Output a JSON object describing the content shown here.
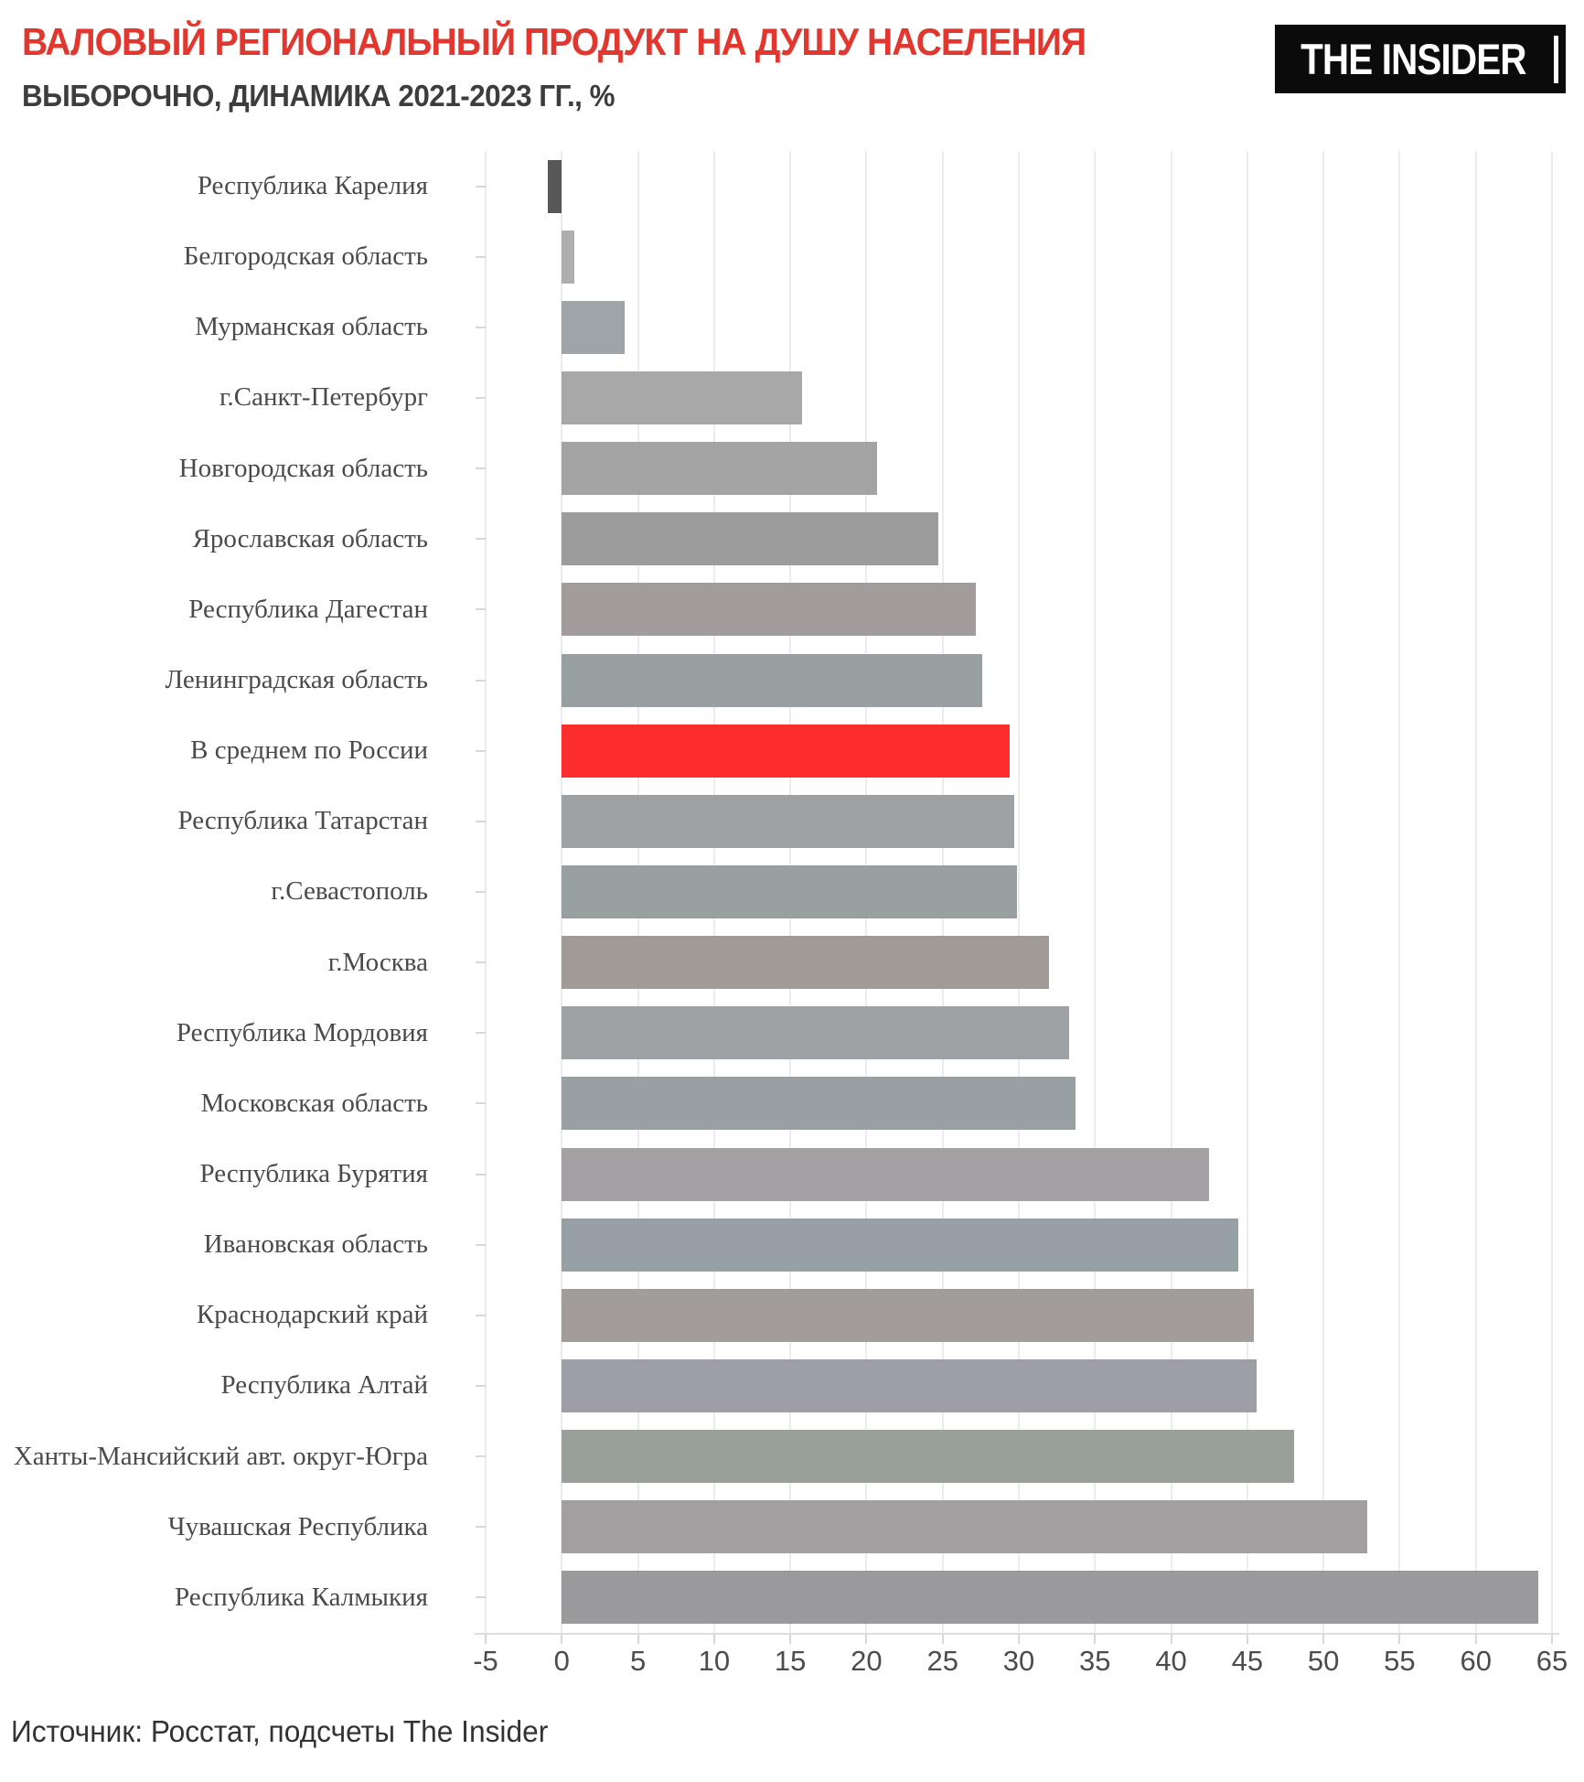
{
  "header": {
    "title": "ВАЛОВЫЙ РЕГИОНАЛЬНЫЙ ПРОДУКТ НА ДУШУ НАСЕЛЕНИЯ",
    "subtitle": "ВЫБОРОЧНО, ДИНАМИКА 2021-2023 ГГ., %",
    "logo_text": "THE INSIDER"
  },
  "footer": {
    "source": "Источник: Росстат, подсчеты The Insider"
  },
  "colors": {
    "title_red": "#e2372e",
    "highlight_red": "#fb2d2d",
    "dark_bar": "#58585b",
    "logo_bg": "#0b0b0b",
    "grid": "#ececec"
  },
  "chart_data": {
    "type": "bar",
    "orientation": "horizontal",
    "title": "ВАЛОВЫЙ РЕГИОНАЛЬНЫЙ ПРОДУКТ НА ДУШУ НАСЕЛЕНИЯ",
    "subtitle": "ВЫБОРОЧНО, ДИНАМИКА 2021-2023 ГГ., %",
    "legend": "none",
    "grid": "vertical",
    "xlim": [
      -5,
      65
    ],
    "x_ticks": [
      -5,
      0,
      5,
      10,
      15,
      20,
      25,
      30,
      35,
      40,
      45,
      50,
      55,
      60,
      65
    ],
    "highlight_category": "В среднем по России",
    "categories": [
      "Республика Карелия",
      "Белгородская область",
      "Мурманская область",
      "г.Санкт-Петербург",
      "Новгородская область",
      "Ярославская область",
      "Республика Дагестан",
      "Ленинградская область",
      "В среднем по России",
      "Республика Татарстан",
      "г.Севастополь",
      "г.Москва",
      "Республика Мордовия",
      "Московская область",
      "Республика Бурятия",
      "Ивановская область",
      "Краснодарский край",
      "Республика Алтай",
      "Ханты-Мансийский авт. округ-Югра",
      "Чувашская Республика",
      "Республика Калмыкия"
    ],
    "values": [
      -0.9,
      0.8,
      4.1,
      15.8,
      20.7,
      24.7,
      27.2,
      27.6,
      29.4,
      29.7,
      29.9,
      32.0,
      33.3,
      33.7,
      42.5,
      44.4,
      45.4,
      45.6,
      48.1,
      52.9,
      64.1
    ],
    "bar_colors": [
      "#58585b",
      "#aeaeae",
      "#9fa4a9",
      "#a8a8a8",
      "#a4a4a4",
      "#9c9c9c",
      "#a39c9c",
      "#98a0a2",
      "#fb2d2d",
      "#9ea1a3",
      "#99a0a2",
      "#a19b98",
      "#9ea2a4",
      "#99a0a3",
      "#a4a0a3",
      "#97a0a4",
      "#a29c9b",
      "#9d9ea6",
      "#99a09a",
      "#a39fa0",
      "#9a999b"
    ]
  }
}
